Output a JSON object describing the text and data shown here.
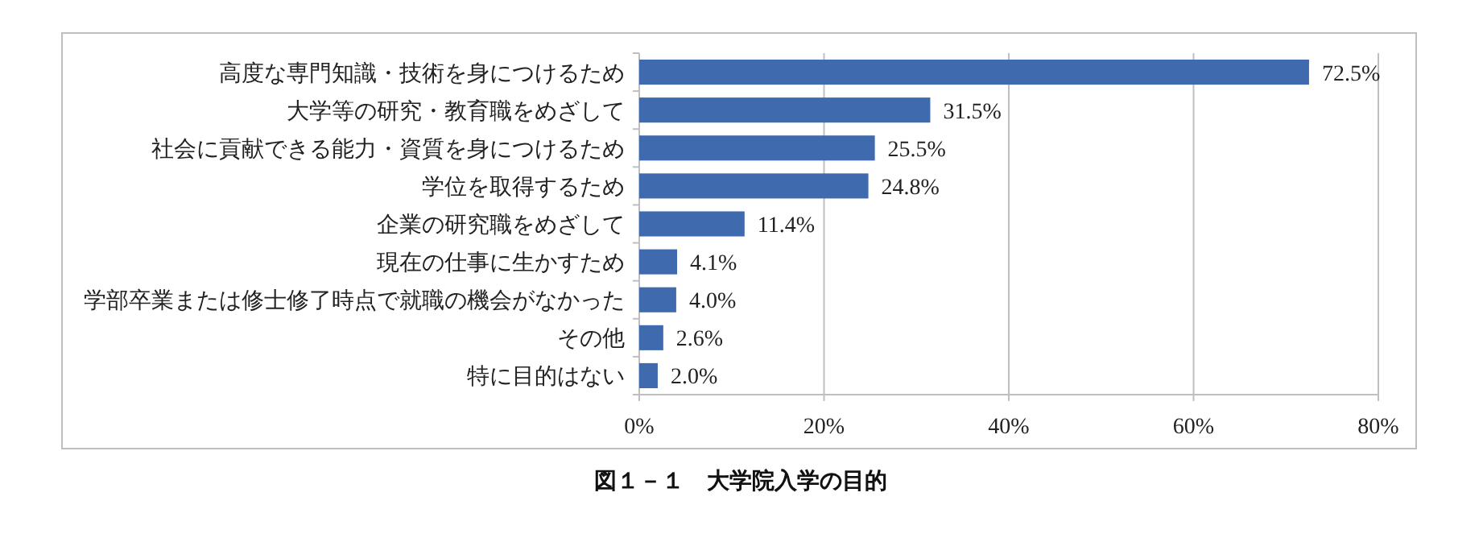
{
  "chart_data": {
    "type": "bar",
    "orientation": "horizontal",
    "title": "図１－１　大学院入学の目的",
    "categories": [
      "高度な専門知識・技術を身につけるため",
      "大学等の研究・教育職をめざして",
      "社会に貢献できる能力・資質を身につけるため",
      "学位を取得するため",
      "企業の研究職をめざして",
      "現在の仕事に生かすため",
      "学部卒業または修士修了時点で就職の機会がなかった",
      "その他",
      "特に目的はない"
    ],
    "values": [
      72.5,
      31.5,
      25.5,
      24.8,
      11.4,
      4.1,
      4.0,
      2.6,
      2.0
    ],
    "value_labels": [
      "72.5%",
      "31.5%",
      "25.5%",
      "24.8%",
      "11.4%",
      "4.1%",
      "4.0%",
      "2.6%",
      "2.0%"
    ],
    "color": "#3f6aad",
    "xlim": [
      0,
      80
    ],
    "xticks": [
      {
        "value": 0,
        "label": "0%"
      },
      {
        "value": 20,
        "label": "20%"
      },
      {
        "value": 40,
        "label": "40%"
      },
      {
        "value": 60,
        "label": "60%"
      },
      {
        "value": 80,
        "label": "80%"
      }
    ],
    "grid": "x"
  }
}
